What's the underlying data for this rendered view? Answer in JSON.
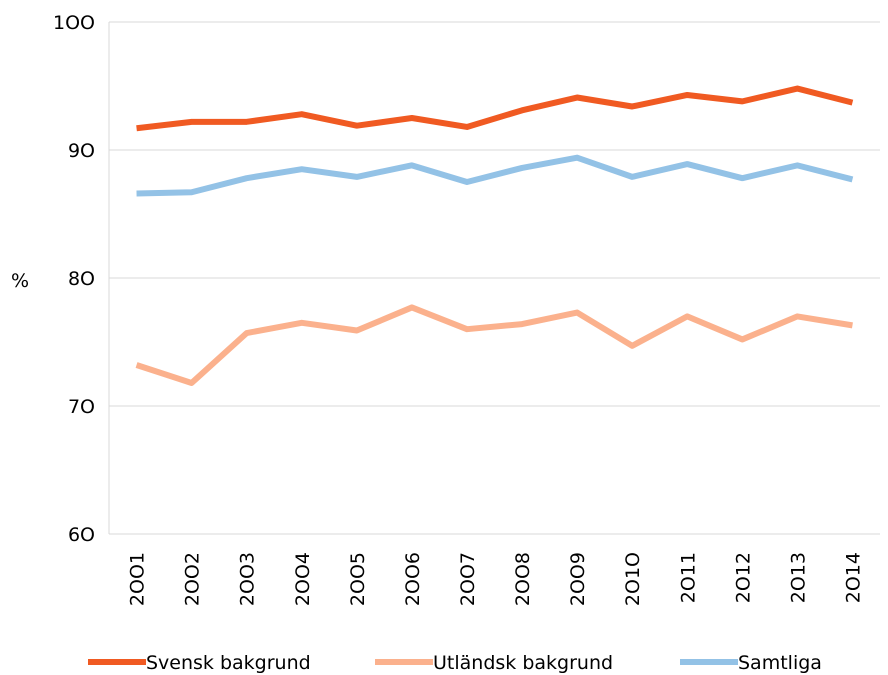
{
  "chart_data": {
    "type": "line",
    "title": "",
    "xlabel": "",
    "ylabel": "%",
    "ylim": [
      60,
      100
    ],
    "yticks": [
      60,
      70,
      80,
      90,
      100
    ],
    "yticks_text": [
      "6O",
      "7O",
      "8O",
      "9O",
      "1OO"
    ],
    "grid": true,
    "legend": "bottom",
    "categories": [
      2001,
      2002,
      2003,
      2004,
      2005,
      2006,
      2007,
      2008,
      2009,
      2010,
      2011,
      2012,
      2013,
      2014
    ],
    "categories_text": [
      "2OO1",
      "2OO2",
      "2OO3",
      "2OO4",
      "2OO5",
      "2OO6",
      "2OO7",
      "2OO8",
      "2OO9",
      "2O1O",
      "2O11",
      "2O12",
      "2O13",
      "2O14"
    ],
    "series": [
      {
        "name": "Svensk bakgrund",
        "color": "#f05a22",
        "values": [
          91.7,
          92.2,
          92.2,
          92.8,
          91.9,
          92.5,
          91.8,
          93.1,
          94.1,
          93.4,
          94.3,
          93.8,
          94.8,
          93.7
        ]
      },
      {
        "name": "Utländsk bakgrund",
        "color": "#fbb18d",
        "values": [
          73.2,
          71.8,
          75.7,
          76.5,
          75.9,
          77.7,
          76.0,
          76.4,
          77.3,
          74.7,
          77.0,
          75.2,
          77.0,
          76.3
        ]
      },
      {
        "name": "Samtliga",
        "color": "#93c2e6",
        "values": [
          86.6,
          86.7,
          87.8,
          88.5,
          87.9,
          88.8,
          87.5,
          88.6,
          89.4,
          87.9,
          88.9,
          87.8,
          88.8,
          87.7
        ]
      }
    ]
  }
}
